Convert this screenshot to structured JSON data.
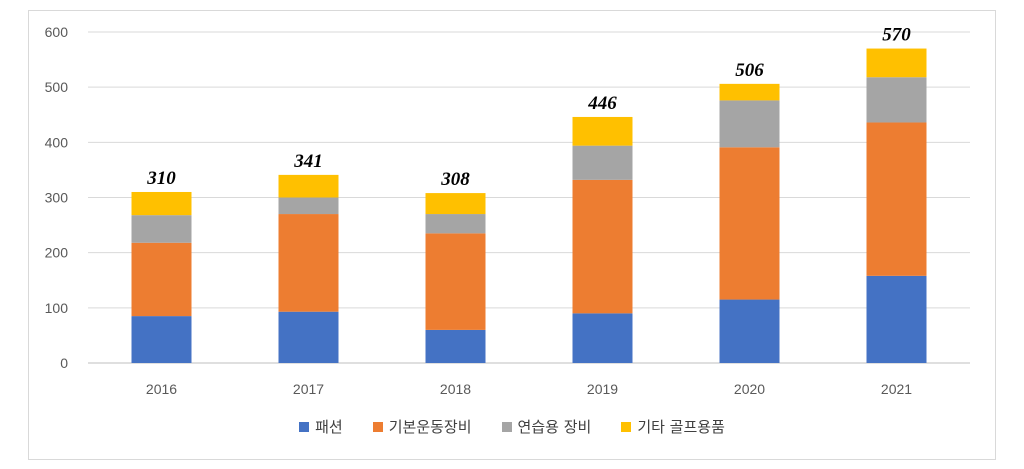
{
  "chart_data": {
    "type": "bar",
    "stacked": true,
    "categories": [
      "2016",
      "2017",
      "2018",
      "2019",
      "2020",
      "2021"
    ],
    "series": [
      {
        "name": "패션",
        "color": "#4472C4",
        "values": [
          85,
          93,
          60,
          90,
          115,
          158
        ]
      },
      {
        "name": "기본운동장비",
        "color": "#ED7D31",
        "values": [
          133,
          177,
          175,
          242,
          276,
          278
        ]
      },
      {
        "name": "연습용 장비",
        "color": "#A5A5A5",
        "values": [
          50,
          30,
          35,
          62,
          85,
          82
        ]
      },
      {
        "name": "기타 골프용품",
        "color": "#FFC000",
        "values": [
          42,
          41,
          38,
          52,
          30,
          52
        ]
      }
    ],
    "totals": [
      "310",
      "341",
      "308",
      "446",
      "506",
      "570"
    ],
    "ylim": [
      0,
      600
    ],
    "yticks": [
      "0",
      "100",
      "200",
      "300",
      "400",
      "500",
      "600"
    ],
    "grid": true,
    "legend_position": "bottom",
    "title": "",
    "xlabel": "",
    "ylabel": ""
  }
}
